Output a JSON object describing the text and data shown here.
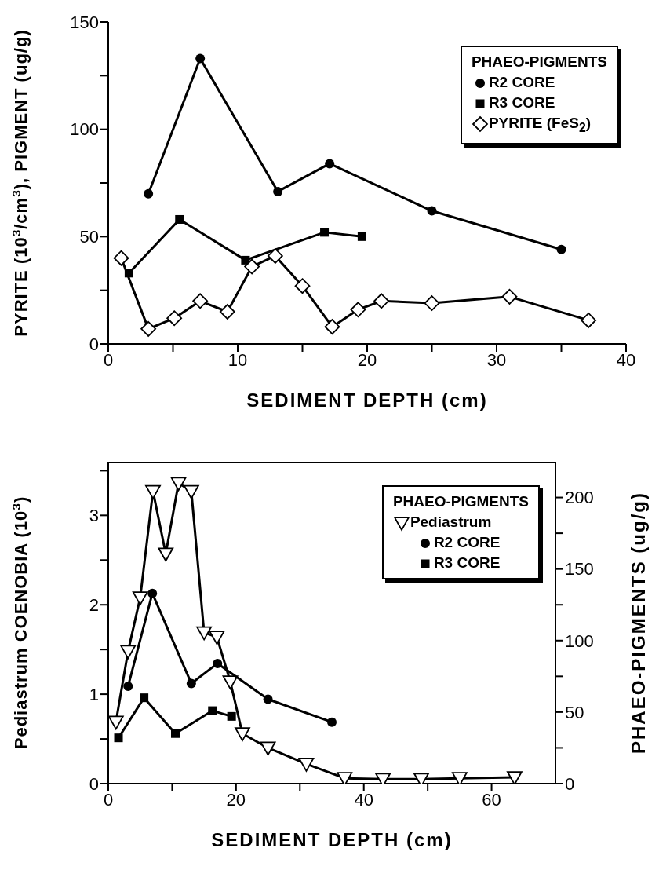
{
  "chart_data": [
    {
      "type": "line",
      "xlabel": "SEDIMENT DEPTH (cm)",
      "ylabel": "PYRITE (10$^{3}$/cm$^{3}$), PIGMENT (ug/g)",
      "legend_title": "PHAEO-PIGMENTS",
      "legend": "top right",
      "xlim": [
        0,
        40
      ],
      "xticks": [
        0,
        {
          "value": 5,
          "label": null
        },
        10,
        {
          "value": 15,
          "label": null
        },
        20,
        {
          "value": 25,
          "label": null
        },
        30,
        {
          "value": 35,
          "label": null
        },
        40
      ],
      "ylim": [
        0,
        150
      ],
      "yticks": [
        0,
        {
          "value": 25,
          "label": null
        },
        50,
        {
          "value": 75,
          "label": null
        },
        100,
        {
          "value": 125,
          "label": null
        },
        150
      ],
      "series": [
        {
          "name": "R2 CORE",
          "color": "#000000",
          "marker": "circle",
          "x": [
            3.1,
            7.1,
            13.1,
            17.1,
            25,
            35
          ],
          "values": [
            70,
            133,
            71,
            84,
            62,
            44
          ]
        },
        {
          "name": "R3 CORE",
          "color": "#000000",
          "marker": "square",
          "x": [
            1.6,
            5.5,
            10.6,
            16.7,
            19.6
          ],
          "values": [
            33,
            58,
            39,
            52,
            50
          ]
        },
        {
          "name": "PYRITE (FeS$_{2}$)",
          "color": "#000000",
          "marker": "diamond",
          "x": [
            1,
            3.1,
            5.1,
            7.1,
            9.2,
            11.1,
            12.9,
            15,
            17.3,
            19.3,
            21.1,
            25,
            31,
            37.1
          ],
          "values": [
            40,
            7,
            12,
            20,
            15,
            36,
            41,
            27,
            8,
            16,
            20,
            19,
            22,
            11
          ]
        }
      ]
    },
    {
      "type": "line",
      "xlabel": "SEDIMENT DEPTH (cm)",
      "ylabel": "Pediastrum COENOBIA (10$^{3}$)",
      "y2label": "PHAEO-PIGMENTS (ug/g)",
      "legend_title": "PHAEO-PIGMENTS",
      "legend": "top right",
      "xlim": [
        0,
        70
      ],
      "xticks": [
        0,
        {
          "value": 10,
          "label": null
        },
        20,
        {
          "value": 30,
          "label": null
        },
        40,
        {
          "value": 50,
          "label": null
        },
        60
      ],
      "ylim": [
        0,
        3.6
      ],
      "yticks": [
        0,
        {
          "value": 0.5,
          "label": null
        },
        1,
        {
          "value": 1.5,
          "label": null
        },
        2,
        {
          "value": 2.5,
          "label": null
        },
        3,
        {
          "value": 3.5,
          "label": null
        }
      ],
      "y2lim": [
        0,
        225
      ],
      "y2ticks": [
        0,
        {
          "value": 25,
          "label": null
        },
        50,
        {
          "value": 75,
          "label": null
        },
        100,
        {
          "value": 125,
          "label": null
        },
        150,
        {
          "value": 175,
          "label": null
        },
        200
      ],
      "series": [
        {
          "name": "Pediastrum",
          "color": "#000000",
          "marker": "triangle",
          "x": [
            1.2,
            3.1,
            5,
            7,
            9,
            11,
            13,
            15,
            17,
            19.1,
            21,
            25,
            31,
            37,
            43,
            49,
            55,
            63.6
          ],
          "values": [
            0.69,
            1.48,
            2.08,
            3.27,
            2.57,
            3.36,
            3.27,
            1.69,
            1.64,
            1.14,
            0.56,
            0.4,
            0.22,
            0.06,
            0.05,
            0.05,
            0.06,
            0.07
          ]
        },
        {
          "name": "R2 CORE",
          "color": "#000000",
          "marker": "circle",
          "axis": "y2",
          "x": [
            3.1,
            6.9,
            13,
            17.1,
            25,
            35
          ],
          "values": [
            68,
            133,
            70,
            84,
            59,
            43
          ]
        },
        {
          "name": "R3 CORE",
          "color": "#000000",
          "marker": "square",
          "axis": "y2",
          "x": [
            1.6,
            5.6,
            10.5,
            16.3,
            19.3
          ],
          "values": [
            32,
            60,
            35,
            51,
            47
          ]
        }
      ]
    }
  ]
}
